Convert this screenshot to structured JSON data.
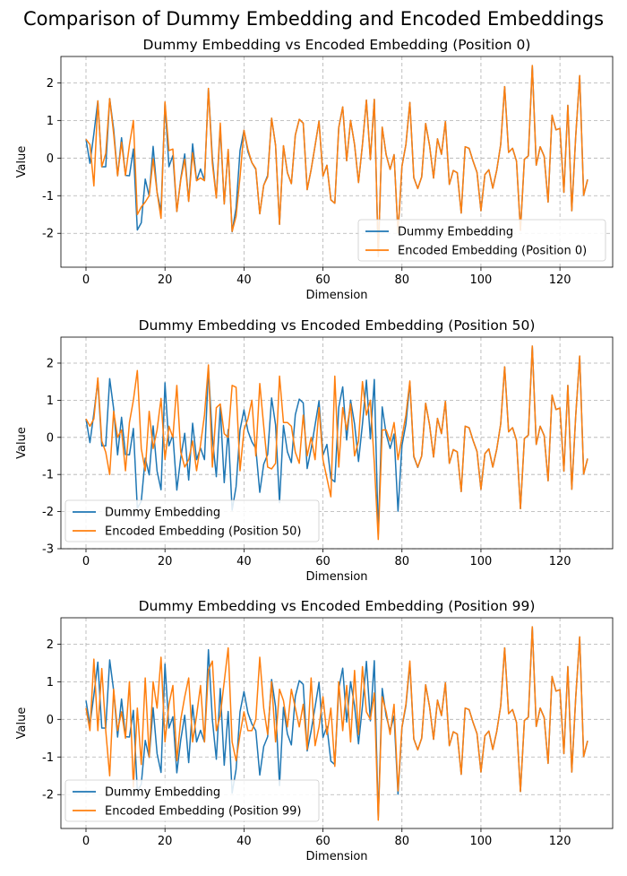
{
  "figure_title": "Comparison of Dummy Embedding and Encoded Embeddings",
  "colors": {
    "dummy": "#1f77b4",
    "encoded": "#ff7f0e"
  },
  "chart_data": [
    {
      "type": "line",
      "title": "Dummy Embedding vs Encoded Embedding (Position 0)",
      "xlabel": "Dimension",
      "ylabel": "Value",
      "xlim": [
        -6.35,
        133.35
      ],
      "ylim": [
        -2.9,
        2.7
      ],
      "xticks": [
        0,
        20,
        40,
        60,
        80,
        100,
        120
      ],
      "yticks": [
        -2,
        -1,
        0,
        1,
        2
      ],
      "grid": true,
      "legend_loc": "lower right",
      "series": [
        {
          "name": "Dummy Embedding",
          "color": "#1f77b4",
          "values": [
            0.5,
            -0.14,
            0.65,
            1.52,
            -0.23,
            -0.23,
            1.58,
            0.77,
            -0.47,
            0.54,
            -0.46,
            -0.47,
            0.24,
            -1.91,
            -1.72,
            -0.56,
            -1.01,
            0.31,
            -0.91,
            -1.41,
            1.47,
            -0.23,
            0.07,
            -1.42,
            -0.54,
            0.11,
            -1.15,
            0.38,
            -0.6,
            -0.29,
            -0.6,
            1.85,
            -0.01,
            -1.06,
            0.82,
            -1.22,
            0.21,
            -1.96,
            -1.33,
            0.2,
            0.74,
            0.17,
            -0.12,
            -0.3,
            -1.48,
            -0.72,
            -0.46,
            1.06,
            0.34,
            -1.76,
            0.32,
            -0.39,
            -0.68,
            0.61,
            1.03,
            0.93,
            -0.84,
            -0.31,
            0.33,
            0.98,
            -0.48,
            -0.19,
            -1.11,
            -1.2,
            0.81,
            1.36,
            -0.07,
            1.0,
            0.36,
            -0.65,
            0.36,
            1.54,
            -0.04,
            1.56,
            -2.62,
            0.82,
            0.09,
            -0.3,
            0.09,
            -1.99,
            -0.22,
            0.36,
            1.48,
            -0.52,
            -0.81,
            -0.5,
            0.92,
            0.33,
            -0.53,
            0.51,
            0.1,
            0.97,
            -0.7,
            -0.33,
            -0.39,
            -1.46,
            0.3,
            0.26,
            -0.08,
            -0.38,
            -1.4,
            -0.44,
            -0.31,
            -0.8,
            -0.32,
            0.36,
            1.9,
            0.15,
            0.26,
            -0.08,
            -1.92,
            -0.03,
            0.06,
            2.46,
            -0.19,
            0.3,
            0.05,
            -1.17,
            1.14,
            0.75,
            0.79,
            -0.91,
            1.4,
            -1.4,
            0.59,
            2.19,
            -0.99,
            -0.57
          ]
        },
        {
          "name": "Encoded Embedding (Position 0)",
          "color": "#ff7f0e",
          "values": [
            0.5,
            0.36,
            -0.74,
            1.52,
            -0.23,
            0.12,
            1.58,
            0.65,
            -0.47,
            0.42,
            -0.46,
            0.35,
            1.0,
            -1.5,
            -1.3,
            -1.17,
            -1.0,
            -0.02,
            -0.91,
            -1.6,
            1.49,
            0.2,
            0.24,
            -1.42,
            -0.58,
            -0.03,
            -1.15,
            0.14,
            -0.6,
            -0.53,
            -0.6,
            1.85,
            -0.15,
            -1.06,
            0.93,
            -1.22,
            0.23,
            -1.95,
            -1.55,
            -0.5,
            0.74,
            0.23,
            -0.12,
            -0.28,
            -1.48,
            -0.72,
            -0.5,
            1.06,
            0.34,
            -1.76,
            0.33,
            -0.39,
            -0.68,
            0.61,
            1.03,
            0.93,
            -0.84,
            -0.31,
            0.33,
            0.98,
            -0.48,
            -0.19,
            -1.11,
            -1.2,
            0.81,
            1.36,
            -0.07,
            1.0,
            0.36,
            -0.65,
            0.36,
            1.54,
            -0.04,
            1.56,
            -2.62,
            0.82,
            0.09,
            -0.3,
            0.09,
            -1.99,
            -0.22,
            0.36,
            1.48,
            -0.52,
            -0.81,
            -0.5,
            0.92,
            0.33,
            -0.53,
            0.51,
            0.1,
            0.97,
            -0.7,
            -0.33,
            -0.39,
            -1.46,
            0.3,
            0.26,
            -0.08,
            -0.38,
            -1.4,
            -0.44,
            -0.31,
            -0.8,
            -0.32,
            0.36,
            1.9,
            0.15,
            0.26,
            -0.08,
            -1.92,
            -0.03,
            0.06,
            2.46,
            -0.19,
            0.3,
            0.05,
            -1.17,
            1.14,
            0.75,
            0.79,
            -0.91,
            1.4,
            -1.4,
            0.59,
            2.19,
            -0.99,
            -0.57
          ]
        }
      ]
    },
    {
      "type": "line",
      "title": "Dummy Embedding vs Encoded Embedding (Position 50)",
      "xlabel": "Dimension",
      "ylabel": "Value",
      "xlim": [
        -6.35,
        133.35
      ],
      "ylim": [
        -3.0,
        2.7
      ],
      "xticks": [
        0,
        20,
        40,
        60,
        80,
        100,
        120
      ],
      "yticks": [
        -3,
        -2,
        -1,
        0,
        1,
        2
      ],
      "grid": true,
      "legend_loc": "lower left",
      "series": [
        {
          "name": "Dummy Embedding",
          "color": "#1f77b4",
          "values": [
            0.5,
            -0.14,
            0.65,
            1.52,
            -0.23,
            -0.23,
            1.58,
            0.77,
            -0.47,
            0.54,
            -0.46,
            -0.47,
            0.24,
            -1.91,
            -1.72,
            -0.56,
            -1.01,
            0.31,
            -0.91,
            -1.41,
            1.47,
            -0.23,
            0.07,
            -1.42,
            -0.54,
            0.11,
            -1.15,
            0.38,
            -0.6,
            -0.29,
            -0.6,
            1.85,
            -0.01,
            -1.06,
            0.82,
            -1.22,
            0.21,
            -1.96,
            -1.33,
            0.2,
            0.74,
            0.17,
            -0.12,
            -0.3,
            -1.48,
            -0.72,
            -0.46,
            1.06,
            0.34,
            -1.76,
            0.32,
            -0.39,
            -0.68,
            0.61,
            1.03,
            0.93,
            -0.84,
            -0.31,
            0.33,
            0.98,
            -0.48,
            -0.19,
            -1.11,
            -1.2,
            0.81,
            1.36,
            -0.07,
            1.0,
            0.36,
            -0.65,
            0.36,
            1.54,
            -0.04,
            1.56,
            -2.62,
            0.82,
            0.09,
            -0.3,
            0.09,
            -1.99,
            -0.22,
            0.36,
            1.48,
            -0.52,
            -0.81,
            -0.5,
            0.92,
            0.33,
            -0.53,
            0.51,
            0.1,
            0.97,
            -0.7,
            -0.33,
            -0.39,
            -1.46,
            0.3,
            0.26,
            -0.08,
            -0.38,
            -1.4,
            -0.44,
            -0.31,
            -0.8,
            -0.32,
            0.36,
            1.9,
            0.15,
            0.26,
            -0.08,
            -1.92,
            -0.03,
            0.06,
            2.46,
            -0.19,
            0.3,
            0.05,
            -1.17,
            1.14,
            0.75,
            0.79,
            -0.91,
            1.4,
            -1.4,
            0.59,
            2.19,
            -0.99,
            -0.57
          ]
        },
        {
          "name": "Encoded Embedding (Position 50)",
          "color": "#ff7f0e",
          "values": [
            0.5,
            0.3,
            0.5,
            1.6,
            -0.1,
            -0.4,
            -1.0,
            0.7,
            0.0,
            0.2,
            -0.9,
            0.4,
            1.0,
            1.8,
            -0.3,
            -0.9,
            0.7,
            -0.3,
            0.2,
            1.05,
            -0.6,
            0.3,
            0.0,
            1.4,
            -0.4,
            -0.8,
            -0.6,
            -0.1,
            -0.9,
            -0.2,
            0.6,
            1.95,
            -0.8,
            0.8,
            0.9,
            0.1,
            0.0,
            1.4,
            1.35,
            -0.9,
            0.2,
            0.5,
            1.0,
            -0.5,
            1.45,
            0.3,
            -0.8,
            -0.85,
            -0.7,
            1.65,
            0.4,
            0.4,
            0.3,
            -0.4,
            -0.7,
            0.6,
            -0.5,
            0.0,
            -0.6,
            0.8,
            -0.6,
            -1.1,
            -1.6,
            1.65,
            -0.8,
            0.8,
            0.2,
            0.9,
            -0.5,
            -0.1,
            1.5,
            0.6,
            1.0,
            -0.7,
            -2.75,
            0.2,
            0.2,
            -0.1,
            0.4,
            -0.6,
            0.0,
            0.6,
            1.52,
            -0.5,
            -0.8,
            -0.5,
            0.92,
            0.33,
            -0.53,
            0.51,
            0.1,
            0.97,
            -0.7,
            -0.33,
            -0.39,
            -1.46,
            0.3,
            0.26,
            -0.08,
            -0.38,
            -1.4,
            -0.44,
            -0.31,
            -0.8,
            -0.32,
            0.36,
            1.9,
            0.15,
            0.26,
            -0.08,
            -1.92,
            -0.03,
            0.06,
            2.46,
            -0.19,
            0.3,
            0.05,
            -1.17,
            1.14,
            0.75,
            0.79,
            -0.91,
            1.4,
            -1.4,
            0.59,
            2.19,
            -0.99,
            -0.57
          ]
        }
      ]
    },
    {
      "type": "line",
      "title": "Dummy Embedding vs Encoded Embedding (Position 99)",
      "xlabel": "Dimension",
      "ylabel": "Value",
      "xlim": [
        -6.35,
        133.35
      ],
      "ylim": [
        -2.9,
        2.7
      ],
      "xticks": [
        0,
        20,
        40,
        60,
        80,
        100,
        120
      ],
      "yticks": [
        -2,
        -1,
        0,
        1,
        2
      ],
      "grid": true,
      "legend_loc": "lower left",
      "series": [
        {
          "name": "Dummy Embedding",
          "color": "#1f77b4",
          "values": [
            0.5,
            -0.14,
            0.65,
            1.52,
            -0.23,
            -0.23,
            1.58,
            0.77,
            -0.47,
            0.54,
            -0.46,
            -0.47,
            0.24,
            -1.91,
            -1.72,
            -0.56,
            -1.01,
            0.31,
            -0.91,
            -1.41,
            1.47,
            -0.23,
            0.07,
            -1.42,
            -0.54,
            0.11,
            -1.15,
            0.38,
            -0.6,
            -0.29,
            -0.6,
            1.85,
            -0.01,
            -1.06,
            0.82,
            -1.22,
            0.21,
            -1.96,
            -1.33,
            0.2,
            0.74,
            0.17,
            -0.12,
            -0.3,
            -1.48,
            -0.72,
            -0.46,
            1.06,
            0.34,
            -1.76,
            0.32,
            -0.39,
            -0.68,
            0.61,
            1.03,
            0.93,
            -0.84,
            -0.31,
            0.33,
            0.98,
            -0.48,
            -0.19,
            -1.11,
            -1.2,
            0.81,
            1.36,
            -0.07,
            1.0,
            0.36,
            -0.65,
            0.36,
            1.54,
            -0.04,
            1.56,
            -2.62,
            0.82,
            0.09,
            -0.3,
            0.09,
            -1.99,
            -0.22,
            0.36,
            1.48,
            -0.52,
            -0.81,
            -0.5,
            0.92,
            0.33,
            -0.53,
            0.51,
            0.1,
            0.97,
            -0.7,
            -0.33,
            -0.39,
            -1.46,
            0.3,
            0.26,
            -0.08,
            -0.38,
            -1.4,
            -0.44,
            -0.31,
            -0.8,
            -0.32,
            0.36,
            1.9,
            0.15,
            0.26,
            -0.08,
            -1.92,
            -0.03,
            0.06,
            2.46,
            -0.19,
            0.3,
            0.05,
            -1.17,
            1.14,
            0.75,
            0.79,
            -0.91,
            1.4,
            -1.4,
            0.59,
            2.19,
            -0.99,
            -0.57
          ]
        },
        {
          "name": "Encoded Embedding (Position 99)",
          "color": "#ff7f0e",
          "values": [
            0.3,
            -0.3,
            1.6,
            -0.3,
            1.35,
            -0.3,
            -1.5,
            0.8,
            -0.3,
            0.2,
            -0.5,
            1.0,
            -1.8,
            0.3,
            -1.2,
            1.1,
            -1.0,
            1.0,
            0.3,
            1.65,
            -0.6,
            0.4,
            0.9,
            -1.1,
            0.0,
            0.6,
            1.1,
            -0.6,
            0.1,
            0.9,
            -0.6,
            1.3,
            1.55,
            -0.3,
            0.1,
            1.0,
            1.9,
            -0.6,
            -1.1,
            -0.4,
            0.2,
            -0.3,
            -0.3,
            0.0,
            1.65,
            0.3,
            -0.4,
            1.0,
            -0.6,
            0.8,
            0.5,
            -0.2,
            0.8,
            0.3,
            -0.2,
            0.4,
            -0.8,
            1.1,
            -0.7,
            -0.2,
            0.6,
            -0.4,
            0.3,
            -1.25,
            1.0,
            -0.3,
            0.9,
            -0.6,
            1.3,
            -0.4,
            1.4,
            0.2,
            0.0,
            0.7,
            -2.68,
            0.6,
            0.2,
            -0.4,
            0.4,
            -1.9,
            -0.2,
            0.4,
            1.55,
            -0.52,
            -0.81,
            -0.5,
            0.92,
            0.33,
            -0.53,
            0.51,
            0.1,
            0.97,
            -0.7,
            -0.33,
            -0.39,
            -1.46,
            0.3,
            0.26,
            -0.08,
            -0.38,
            -1.4,
            -0.44,
            -0.31,
            -0.8,
            -0.32,
            0.36,
            1.9,
            0.15,
            0.26,
            -0.08,
            -1.92,
            -0.03,
            0.06,
            2.46,
            -0.19,
            0.3,
            0.05,
            -1.17,
            1.14,
            0.75,
            0.79,
            -0.91,
            1.4,
            -1.4,
            0.59,
            2.19,
            -0.99,
            -0.57
          ]
        }
      ]
    }
  ]
}
